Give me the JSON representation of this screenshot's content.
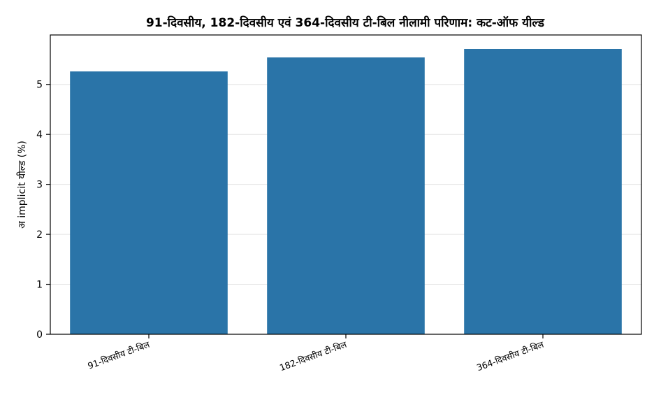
{
  "chart_data": {
    "type": "bar",
    "title": "91-दिवसीय, 182-दिवसीय एवं 364-दिवसीय टी-बिल नीलामी परिणाम: कट-ऑफ यील्ड",
    "xlabel": "",
    "ylabel": "अ implicit यील्ड (%)",
    "categories": [
      "91-दिवसीय टी-बिल",
      "182-दिवसीय टी-बिल",
      "364-दिवसीय टी-बिल"
    ],
    "values": [
      5.26,
      5.54,
      5.71
    ],
    "ylim": [
      0,
      5.99
    ],
    "yticks": [
      "0",
      "1",
      "2",
      "3",
      "4",
      "5"
    ],
    "bar_color": "#2a74a8",
    "grid": true,
    "legend": "none"
  }
}
